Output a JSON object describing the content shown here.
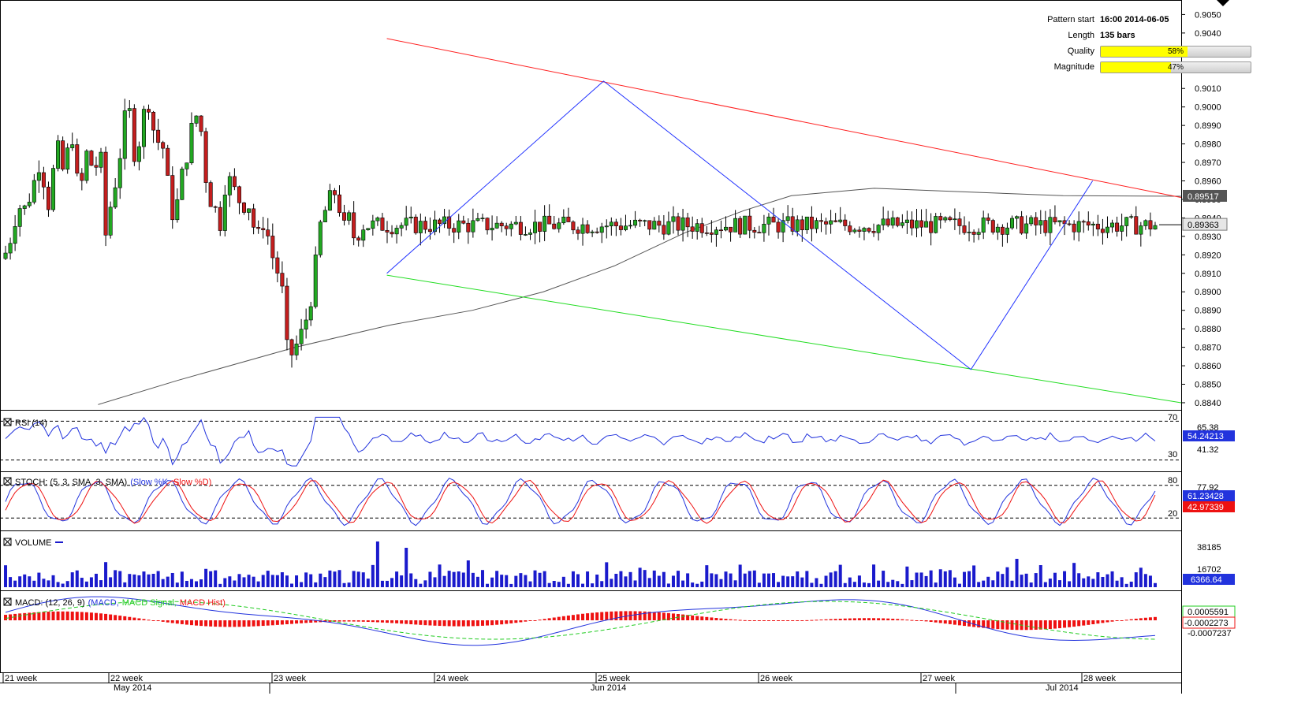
{
  "pattern_info": {
    "start_label": "Pattern start",
    "start_value": "16:00 2014-06-05",
    "length_label": "Length",
    "length_value": "135 bars",
    "quality_label": "Quality",
    "quality_pct": 58,
    "quality_text": "58%",
    "magnitude_label": "Magnitude",
    "magnitude_pct": 47,
    "magnitude_text": "47%"
  },
  "panels": {
    "rsi": {
      "label": "RSI (14)",
      "levels": [
        "70",
        "30"
      ],
      "ticks": [
        "65.38",
        "41.32"
      ],
      "value": "54.24213"
    },
    "stoch": {
      "label": "STOCH: (5, 3, SMA, 3, SMA)",
      "slowk": "(Slow %K,",
      "slowd": "Slow %D)",
      "levels": [
        "80",
        "20"
      ],
      "ticks": [
        "77.92",
        "20"
      ],
      "k_value": "61.23428",
      "d_value": "42.97339"
    },
    "volume": {
      "label": "VOLUME",
      "ticks": [
        "38185",
        "16702"
      ],
      "value": "6366.64"
    },
    "macd": {
      "label": "MACD: (12, 26, 9)",
      "macd": "(MACD,",
      "signal": "MACD Signal,",
      "hist": "MACD Hist)",
      "value1": "0.0005591",
      "value2": "-0.0002273",
      "tick": "-0.0007237"
    }
  },
  "x_axis": {
    "weeks": [
      "21 week",
      "22 week",
      "23 week",
      "24 week",
      "25 week",
      "26 week",
      "27 week",
      "28 week"
    ],
    "months": [
      "May 2014",
      "Jun 2014",
      "Jul 2014"
    ]
  },
  "colors": {
    "bull": "#22a822",
    "bear": "#c41e1e",
    "wedge_top": "#ff2020",
    "wedge_bottom": "#22dd22",
    "zigzag": "#2233ff",
    "ma": "#555555",
    "rsi": "#2233dd",
    "stoch_k": "#2233dd",
    "stoch_d": "#ee1111",
    "volume": "#1a1acc",
    "macd": "#2233dd",
    "macd_signal": "#22cc22",
    "macd_hist": "#ee1111"
  },
  "chart_data": {
    "type": "candlestick",
    "y_ticks": [
      "0.9050",
      "0.9040",
      "0.9030",
      "0.9020",
      "0.9010",
      "0.9000",
      "0.8990",
      "0.8980",
      "0.8970",
      "0.8960",
      "0.8950",
      "0.8940",
      "0.8930",
      "0.8920",
      "0.8910",
      "0.8900",
      "0.8890",
      "0.8880",
      "0.8870",
      "0.8860",
      "0.8850",
      "0.8840"
    ],
    "ylim": [
      0.8837,
      0.9057
    ],
    "last_close": "0.89363",
    "ma_last": "0.89517",
    "bars": 242,
    "close_path": [
      [
        0,
        0.8918
      ],
      [
        5,
        0.8915
      ],
      [
        10,
        0.893
      ],
      [
        15,
        0.8928
      ],
      [
        20,
        0.8942
      ],
      [
        25,
        0.8946
      ],
      [
        30,
        0.8944
      ],
      [
        35,
        0.8948
      ],
      [
        40,
        0.8955
      ],
      [
        45,
        0.8962
      ],
      [
        50,
        0.897
      ],
      [
        55,
        0.8962
      ],
      [
        60,
        0.8944
      ],
      [
        65,
        0.8956
      ],
      [
        70,
        0.8974
      ],
      [
        75,
        0.8978
      ],
      [
        78,
        0.8963
      ],
      [
        82,
        0.897
      ],
      [
        87,
        0.8977
      ],
      [
        91,
        0.8984
      ],
      [
        95,
        0.8983
      ],
      [
        100,
        0.8942
      ],
      [
        104,
        0.896
      ],
      [
        110,
        0.8975
      ],
      [
        115,
        0.8975
      ],
      [
        118,
        0.8955
      ],
      [
        124,
        0.8975
      ],
      [
        129,
        0.897
      ],
      [
        132,
        0.894
      ],
      [
        136,
        0.8922
      ],
      [
        140,
        0.8946
      ],
      [
        145,
        0.8958
      ],
      [
        150,
        0.8962
      ],
      [
        155,
        0.899
      ],
      [
        160,
        0.8995
      ],
      [
        165,
        0.8997
      ],
      [
        170,
        0.8975
      ],
      [
        175,
        0.8978
      ],
      [
        180,
        0.899
      ],
      [
        185,
        0.9003
      ],
      [
        189,
        0.9002
      ],
      [
        194,
        0.899
      ],
      [
        198,
        0.8976
      ],
      [
        203,
        0.8986
      ],
      [
        208,
        0.8975
      ],
      [
        213,
        0.8958
      ],
      [
        218,
        0.8942
      ],
      [
        223,
        0.8945
      ],
      [
        228,
        0.8954
      ],
      [
        233,
        0.897
      ],
      [
        238,
        0.8975
      ],
      [
        243,
        0.8988
      ],
      [
        248,
        0.8994
      ],
      [
        253,
        0.9
      ],
      [
        258,
        0.8968
      ],
      [
        263,
        0.8958
      ],
      [
        268,
        0.8948
      ],
      [
        273,
        0.8945
      ],
      [
        278,
        0.8931
      ],
      [
        283,
        0.8955
      ],
      [
        288,
        0.896
      ],
      [
        293,
        0.896
      ],
      [
        298,
        0.8954
      ],
      [
        303,
        0.895
      ],
      [
        308,
        0.8945
      ],
      [
        313,
        0.8952
      ],
      [
        318,
        0.8942
      ],
      [
        323,
        0.8933
      ],
      [
        328,
        0.893
      ],
      [
        333,
        0.8938
      ],
      [
        338,
        0.8933
      ],
      [
        343,
        0.8925
      ],
      [
        348,
        0.8914
      ],
      [
        353,
        0.891
      ],
      [
        358,
        0.89
      ],
      [
        363,
        0.887
      ],
      [
        368,
        0.8866
      ],
      [
        373,
        0.8867
      ],
      [
        378,
        0.8874
      ],
      [
        383,
        0.8878
      ],
      [
        388,
        0.8885
      ],
      [
        393,
        0.8896
      ],
      [
        398,
        0.8898
      ],
      [
        403,
        0.8936
      ],
      [
        408,
        0.8936
      ],
      [
        413,
        0.8945
      ],
      [
        418,
        0.895
      ],
      [
        423,
        0.8953
      ],
      [
        428,
        0.8955
      ],
      [
        433,
        0.8936
      ],
      [
        438,
        0.8934
      ],
      [
        443,
        0.894
      ],
      [
        448,
        0.893
      ],
      [
        453,
        0.893
      ],
      [
        458,
        0.8936
      ]
    ],
    "wedge_top": [
      [
        0.3275,
        0.9037
      ],
      [
        1.0,
        0.8951
      ]
    ],
    "wedge_bottom": [
      [
        0.3275,
        0.8909
      ],
      [
        1.0,
        0.884
      ]
    ],
    "zigzag": [
      [
        0.3275,
        0.891
      ],
      [
        0.511,
        0.9014
      ],
      [
        0.822,
        0.8858
      ],
      [
        0.925,
        0.896
      ]
    ],
    "ma_path": [
      [
        0.083,
        0.8839
      ],
      [
        0.15,
        0.8852
      ],
      [
        0.25,
        0.887
      ],
      [
        0.33,
        0.8882
      ],
      [
        0.4,
        0.889
      ],
      [
        0.46,
        0.89
      ],
      [
        0.52,
        0.8914
      ],
      [
        0.58,
        0.8932
      ],
      [
        0.63,
        0.8944
      ],
      [
        0.67,
        0.8952
      ],
      [
        0.74,
        0.8956
      ],
      [
        0.82,
        0.8954
      ],
      [
        0.9,
        0.8952
      ],
      [
        1.0,
        0.89517
      ]
    ]
  }
}
